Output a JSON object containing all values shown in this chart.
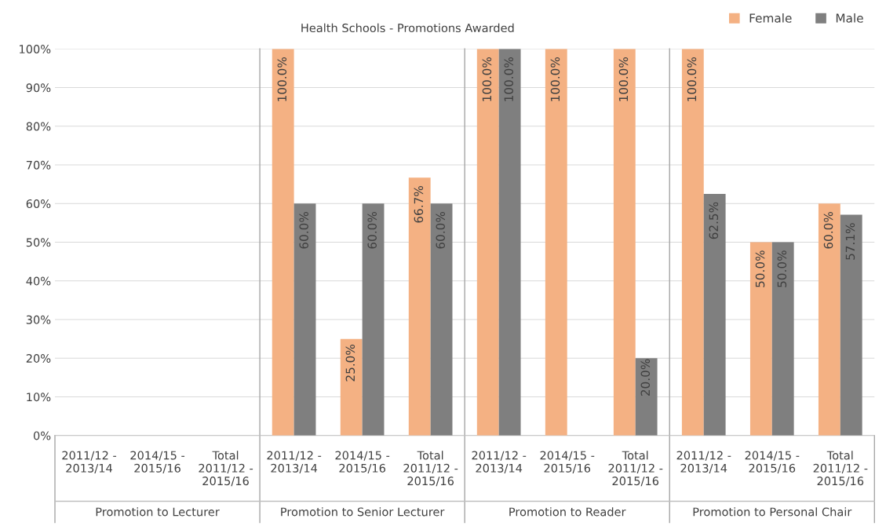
{
  "chart_data": {
    "type": "bar",
    "title": "Health Schools - Promotions Awarded",
    "categories": [
      "2011/12 -\n2013/14",
      "2014/15 -\n2015/16",
      "Total\n2011/12 -\n2015/16",
      "2011/12 -\n2013/14",
      "2014/15 -\n2015/16",
      "Total\n2011/12 -\n2015/16",
      "2011/12 -\n2013/14",
      "2014/15 -\n2015/16",
      "Total\n2011/12 -\n2015/16",
      "2011/12 -\n2013/14",
      "2014/15 -\n2015/16",
      "Total\n2011/12 -\n2015/16"
    ],
    "series": [
      {
        "name": "Female",
        "color": "#f4b183",
        "values": [
          null,
          null,
          null,
          100,
          25,
          66.7,
          100,
          100,
          100,
          100,
          50,
          60
        ],
        "value_labels": [
          null,
          null,
          null,
          "100.0%",
          "25.0%",
          "66.7%",
          "100.0%",
          "100.0%",
          "100.0%",
          "100.0%",
          "50.0%",
          "60.0%"
        ]
      },
      {
        "name": "Male",
        "color": "#7f7f7f",
        "values": [
          null,
          null,
          null,
          60,
          60,
          60,
          100,
          null,
          20,
          62.5,
          50,
          57.1
        ],
        "value_labels": [
          null,
          null,
          null,
          "60.0%",
          "60.0%",
          "60.0%",
          "100.0%",
          null,
          "20.0%",
          "62.5%",
          "50.0%",
          "57.1%"
        ]
      }
    ],
    "annotations": [
      "Promotion to Lecturer",
      "Promotion to Senior Lecturer",
      "Promotion to Reader",
      "Promotion to Personal Chair"
    ],
    "ylim": [
      0,
      100
    ],
    "yticks": [
      {
        "value": 0,
        "label": "0%"
      },
      {
        "value": 10,
        "label": "10%"
      },
      {
        "value": 20,
        "label": "20%"
      },
      {
        "value": 30,
        "label": "30%"
      },
      {
        "value": 40,
        "label": "40%"
      },
      {
        "value": 50,
        "label": "50%"
      },
      {
        "value": 60,
        "label": "60%"
      },
      {
        "value": 70,
        "label": "70%"
      },
      {
        "value": 80,
        "label": "80%"
      },
      {
        "value": 90,
        "label": "90%"
      },
      {
        "value": 100,
        "label": "100%"
      }
    ],
    "grid": "y",
    "legend": "top right"
  }
}
